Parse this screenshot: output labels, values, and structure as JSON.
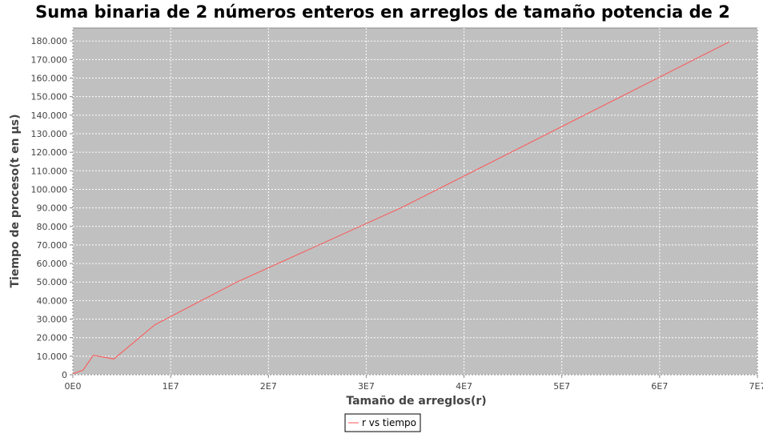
{
  "chart_data": {
    "type": "line",
    "title": "Suma binaria de 2 números enteros en arreglos de tamaño potencia de 2",
    "xlabel": "Tamaño de arreglos(r)",
    "ylabel": "Tiempo de proceso(t en µs)",
    "xlim": [
      0,
      70000000
    ],
    "ylim": [
      0,
      187000
    ],
    "x_ticks": [
      0,
      10000000,
      20000000,
      30000000,
      40000000,
      50000000,
      60000000,
      70000000
    ],
    "x_tick_labels": [
      "0E0",
      "1E7",
      "2E7",
      "3E7",
      "4E7",
      "5E7",
      "6E7",
      "7E7"
    ],
    "y_ticks": [
      0,
      10000,
      20000,
      30000,
      40000,
      50000,
      60000,
      70000,
      80000,
      90000,
      100000,
      110000,
      120000,
      130000,
      140000,
      150000,
      160000,
      170000,
      180000
    ],
    "y_tick_labels": [
      "0",
      "10.000",
      "20.000",
      "30.000",
      "40.000",
      "50.000",
      "60.000",
      "70.000",
      "80.000",
      "90.000",
      "100.000",
      "110.000",
      "120.000",
      "130.000",
      "140.000",
      "150.000",
      "160.000",
      "170.000",
      "180.000"
    ],
    "grid": true,
    "legend_position": "bottom",
    "series": [
      {
        "name": "r vs tiempo",
        "color": "#ff5555",
        "x": [
          0,
          524288,
          1048576,
          2097152,
          4194304,
          8388608,
          16777216,
          33554432,
          67108864
        ],
        "y": [
          500,
          1500,
          2500,
          10500,
          8500,
          27000,
          50000,
          90000,
          179500
        ]
      }
    ]
  },
  "colors": {
    "plot_background": "#c0c0c0",
    "grid": "#ffffff",
    "axis": "#888888"
  }
}
